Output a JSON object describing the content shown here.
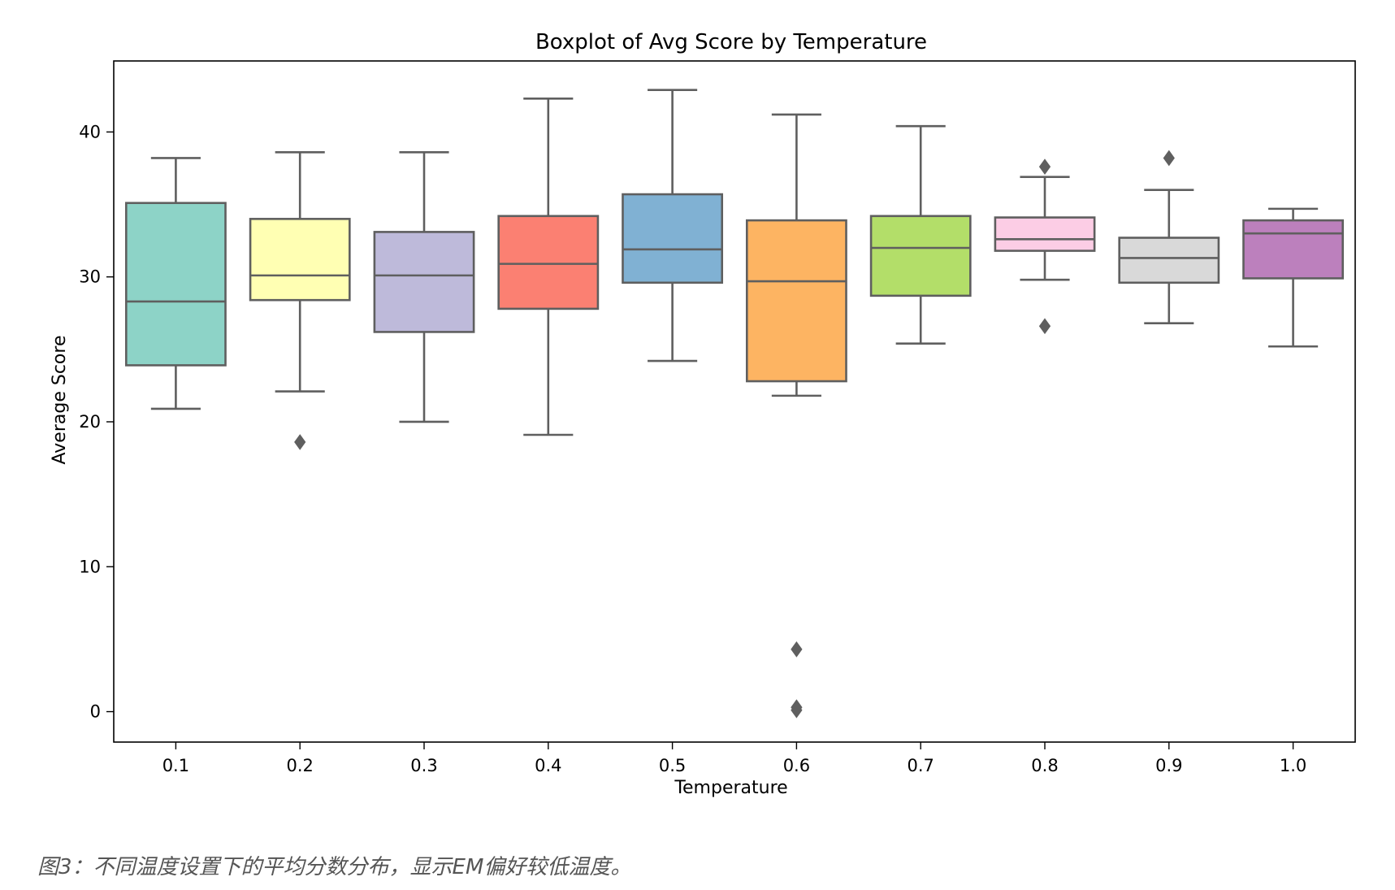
{
  "chart_data": {
    "type": "box",
    "title": "Boxplot of Avg Score by Temperature",
    "xlabel": "Temperature",
    "ylabel": "Average Score",
    "categories": [
      "0.1",
      "0.2",
      "0.3",
      "0.4",
      "0.5",
      "0.6",
      "0.7",
      "0.8",
      "0.9",
      "1.0"
    ],
    "ylim": [
      -2.1,
      44.9
    ],
    "yticks": [
      0,
      10,
      20,
      30,
      40
    ],
    "grid": false,
    "legend": "none",
    "boxes": [
      {
        "category": "0.1",
        "whisker_low": 20.9,
        "q1": 23.9,
        "median": 28.3,
        "q3": 35.1,
        "whisker_high": 38.2,
        "outliers": [],
        "color": "#8dd3c7"
      },
      {
        "category": "0.2",
        "whisker_low": 22.1,
        "q1": 28.4,
        "median": 30.1,
        "q3": 34.0,
        "whisker_high": 38.6,
        "outliers": [
          18.6
        ],
        "color": "#ffffb3"
      },
      {
        "category": "0.3",
        "whisker_low": 20.0,
        "q1": 26.2,
        "median": 30.1,
        "q3": 33.1,
        "whisker_high": 38.6,
        "outliers": [],
        "color": "#bebada"
      },
      {
        "category": "0.4",
        "whisker_low": 19.1,
        "q1": 27.8,
        "median": 30.9,
        "q3": 34.2,
        "whisker_high": 42.3,
        "outliers": [],
        "color": "#fb8072"
      },
      {
        "category": "0.5",
        "whisker_low": 24.2,
        "q1": 29.6,
        "median": 31.9,
        "q3": 35.7,
        "whisker_high": 42.9,
        "outliers": [],
        "color": "#80b1d3"
      },
      {
        "category": "0.6",
        "whisker_low": 21.8,
        "q1": 22.8,
        "median": 29.7,
        "q3": 33.9,
        "whisker_high": 41.2,
        "outliers": [
          4.3,
          0.3,
          0.1
        ],
        "color": "#fdb462"
      },
      {
        "category": "0.7",
        "whisker_low": 25.4,
        "q1": 28.7,
        "median": 32.0,
        "q3": 34.2,
        "whisker_high": 40.4,
        "outliers": [],
        "color": "#b3de69"
      },
      {
        "category": "0.8",
        "whisker_low": 29.8,
        "q1": 31.8,
        "median": 32.6,
        "q3": 34.1,
        "whisker_high": 36.9,
        "outliers": [
          37.6,
          26.6
        ],
        "color": "#fccde5"
      },
      {
        "category": "0.9",
        "whisker_low": 26.8,
        "q1": 29.6,
        "median": 31.3,
        "q3": 32.7,
        "whisker_high": 36.0,
        "outliers": [
          38.2
        ],
        "color": "#d9d9d9"
      },
      {
        "category": "1.0",
        "whisker_low": 25.2,
        "q1": 29.9,
        "median": 33.0,
        "q3": 33.9,
        "whisker_high": 34.7,
        "outliers": [],
        "color": "#bc80bd"
      }
    ]
  },
  "caption": "图3：不同温度设置下的平均分数分布，显示EM偏好较低温度。"
}
